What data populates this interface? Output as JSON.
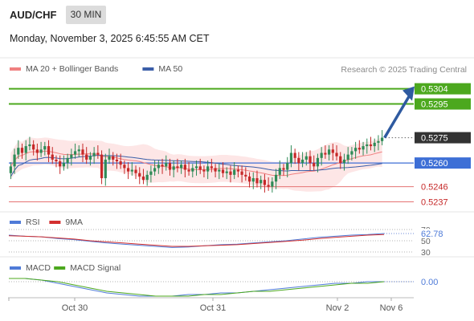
{
  "header": {
    "symbol": "AUD/CHF",
    "timeframe": "30 MIN",
    "datetime": "Monday, November 3, 2025 6:45:55 AM CET"
  },
  "credit": "Research © 2025 Trading Central",
  "colors": {
    "ma20": "#f08080",
    "ma50": "#3b5ea8",
    "bull": "#2e8b57",
    "bear": "#c62828",
    "target_line": "#4ca81e",
    "support_line": "#e57373",
    "pivot_line": "#3d6fd6",
    "arrow": "#2e5aa0",
    "rsi": "#4f7bd8",
    "rsi_ma": "#d32f2f",
    "macd": "#4f7bd8",
    "macd_signal": "#4ca81e",
    "price_tag": "#333333"
  },
  "chart_data": [
    {
      "type": "candlestick",
      "panel": "price",
      "legend": [
        {
          "label": "MA 20 + Bollinger Bands",
          "color": "#f08080"
        },
        {
          "label": "MA 50",
          "color": "#3b5ea8"
        }
      ],
      "ylim": [
        0.5232,
        0.531
      ],
      "levels": [
        {
          "value": 0.5304,
          "label": "0.5304",
          "kind": "target"
        },
        {
          "value": 0.5295,
          "label": "0.5295",
          "kind": "target"
        },
        {
          "value": 0.5275,
          "label": "0.5275",
          "kind": "current"
        },
        {
          "value": 0.526,
          "label": "0.5260",
          "kind": "pivot"
        },
        {
          "value": 0.5246,
          "label": "0.5246",
          "kind": "support"
        },
        {
          "value": 0.5237,
          "label": "0.5237",
          "kind": "support"
        }
      ],
      "closes": [
        0.5258,
        0.5265,
        0.5269,
        0.5266,
        0.527,
        0.5271,
        0.5268,
        0.5266,
        0.5268,
        0.527,
        0.5265,
        0.5262,
        0.5261,
        0.5258,
        0.526,
        0.5263,
        0.5265,
        0.5267,
        0.5268,
        0.5265,
        0.5262,
        0.5264,
        0.5266,
        0.5265,
        0.5251,
        0.5262,
        0.5264,
        0.5262,
        0.5261,
        0.5259,
        0.5257,
        0.5255,
        0.5256,
        0.5254,
        0.5252,
        0.525,
        0.5253,
        0.5255,
        0.5257,
        0.5259,
        0.5258,
        0.526,
        0.5256,
        0.5258,
        0.5257,
        0.5259,
        0.5256,
        0.5255,
        0.5257,
        0.5258,
        0.5256,
        0.5255,
        0.5258,
        0.5257,
        0.5255,
        0.5256,
        0.5254,
        0.5255,
        0.5253,
        0.5256,
        0.5255,
        0.5253,
        0.5252,
        0.5249,
        0.5251,
        0.5248,
        0.525,
        0.5247,
        0.5246,
        0.5249,
        0.5253,
        0.5257,
        0.5256,
        0.526,
        0.5266,
        0.5263,
        0.526,
        0.5262,
        0.5264,
        0.526,
        0.5258,
        0.5263,
        0.5266,
        0.5265,
        0.5268,
        0.5266,
        0.5264,
        0.526,
        0.5262,
        0.5265,
        0.5267,
        0.5269,
        0.5268,
        0.527,
        0.5271,
        0.527,
        0.5272,
        0.5273,
        0.5275
      ]
    },
    {
      "type": "line",
      "panel": "rsi",
      "legend": [
        {
          "label": "RSI",
          "color": "#4f7bd8"
        },
        {
          "label": "9MA",
          "color": "#d32f2f"
        }
      ],
      "ylim": [
        30,
        70
      ],
      "ticks": [
        {
          "value": 70,
          "label": "70"
        },
        {
          "value": 50,
          "label": "50"
        },
        {
          "value": 30,
          "label": "30"
        }
      ],
      "current": {
        "value": 62.78,
        "label": "62.78"
      },
      "series": [
        {
          "name": "RSI",
          "values": [
            60,
            58,
            57,
            54,
            52,
            49,
            46,
            44,
            42,
            40,
            38,
            39,
            41,
            43,
            44,
            46,
            48,
            50,
            53,
            56,
            58,
            60,
            61,
            62.78
          ]
        },
        {
          "name": "9MA",
          "values": [
            59,
            58,
            57,
            55,
            53,
            50,
            48,
            46,
            44,
            42,
            40,
            40,
            41,
            42,
            43,
            45,
            47,
            49,
            51,
            54,
            56,
            58,
            60,
            61
          ]
        }
      ]
    },
    {
      "type": "line",
      "panel": "macd",
      "legend": [
        {
          "label": "MACD",
          "color": "#4f7bd8"
        },
        {
          "label": "MACD Signal",
          "color": "#4ca81e"
        }
      ],
      "ylim": [
        -0.001,
        0.0004
      ],
      "ticks": [
        {
          "value": 0,
          "label": "0"
        }
      ],
      "current": {
        "value": 0.0,
        "label": "0.00"
      },
      "series": [
        {
          "name": "MACD",
          "values": [
            0.0002,
            0.0002,
            0.0001,
            -0.0001,
            -0.0003,
            -0.0005,
            -0.0007,
            -0.0008,
            -0.0009,
            -0.0009,
            -0.0009,
            -0.0008,
            -0.0008,
            -0.0007,
            -0.0007,
            -0.0006,
            -0.0005,
            -0.0004,
            -0.0003,
            -0.0002,
            -0.0001,
            -0.0001,
            0.0,
            0.0
          ]
        },
        {
          "name": "MACD Signal",
          "values": [
            0.0002,
            0.0002,
            0.0001,
            0.0,
            -0.0002,
            -0.0004,
            -0.0006,
            -0.0007,
            -0.0008,
            -0.0009,
            -0.0009,
            -0.0009,
            -0.0008,
            -0.0008,
            -0.0007,
            -0.0006,
            -0.0006,
            -0.0005,
            -0.0004,
            -0.0003,
            -0.0002,
            -0.0001,
            -0.0001,
            0.0
          ]
        }
      ]
    }
  ],
  "x_axis": {
    "labels": [
      "Oct 30",
      "Oct 31",
      "Nov 2",
      "Nov 6"
    ]
  }
}
